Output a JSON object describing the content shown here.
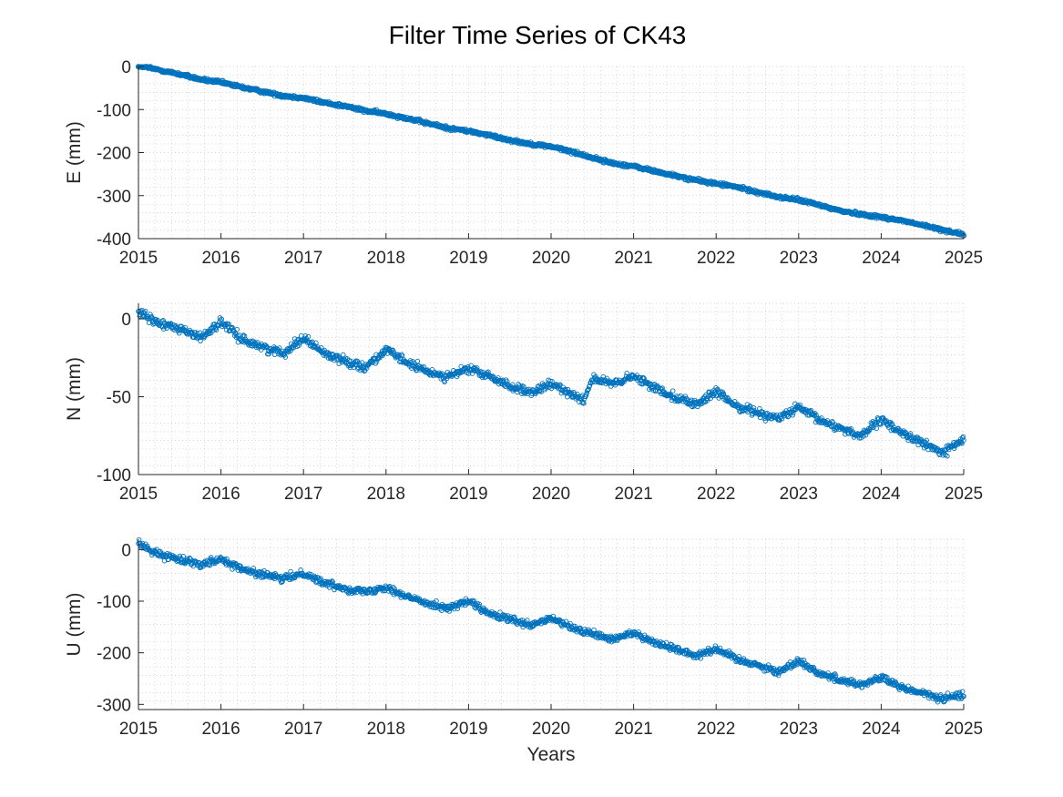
{
  "figure": {
    "background": "#ffffff"
  },
  "chart_data": {
    "title": "Filter Time Series of CK43",
    "type": "scatter",
    "marker": "open-circle",
    "marker_color": "#0072BD",
    "grid": "dotted-minor",
    "xlim": [
      2015,
      2025
    ],
    "x_ticks": [
      "2015",
      "2016",
      "2017",
      "2018",
      "2019",
      "2020",
      "2021",
      "2022",
      "2023",
      "2024",
      "2025"
    ],
    "xlabel": "Years",
    "panels": [
      {
        "ylabel": "E (mm)",
        "ylim": [
          -400,
          0
        ],
        "y_ticks": [
          "0",
          "-100",
          "-200",
          "-300",
          "-400"
        ],
        "series": [
          {
            "x": [
              2015.0,
              2015.25,
              2015.5,
              2015.75,
              2016.0,
              2016.25,
              2016.5,
              2016.75,
              2017.0,
              2017.25,
              2017.5,
              2017.75,
              2018.0,
              2018.25,
              2018.5,
              2018.75,
              2019.0,
              2019.25,
              2019.5,
              2019.75,
              2020.0,
              2020.25,
              2020.5,
              2020.75,
              2021.0,
              2021.25,
              2021.5,
              2021.75,
              2022.0,
              2022.25,
              2022.5,
              2022.75,
              2023.0,
              2023.25,
              2023.5,
              2023.75,
              2024.0,
              2024.25,
              2024.5,
              2024.75,
              2025.0
            ],
            "y": [
              2,
              -8,
              -18,
              -30,
              -37,
              -48,
              -58,
              -68,
              -73,
              -84,
              -92,
              -103,
              -110,
              -120,
              -132,
              -143,
              -150,
              -160,
              -171,
              -180,
              -186,
              -198,
              -212,
              -225,
              -232,
              -243,
              -254,
              -264,
              -272,
              -280,
              -292,
              -303,
              -310,
              -322,
              -335,
              -343,
              -350,
              -358,
              -369,
              -380,
              -390
            ]
          }
        ]
      },
      {
        "ylabel": "N (mm)",
        "ylim": [
          -100,
          10
        ],
        "y_ticks": [
          "0",
          "-50",
          "-100"
        ],
        "series": [
          {
            "x": [
              2015.0,
              2015.25,
              2015.5,
              2015.75,
              2016.0,
              2016.25,
              2016.5,
              2016.75,
              2017.0,
              2017.25,
              2017.5,
              2017.75,
              2018.0,
              2018.25,
              2018.5,
              2018.75,
              2019.0,
              2019.25,
              2019.5,
              2019.75,
              2020.0,
              2020.25,
              2020.4,
              2020.5,
              2020.75,
              2021.0,
              2021.25,
              2021.5,
              2021.75,
              2022.0,
              2022.25,
              2022.5,
              2022.75,
              2023.0,
              2023.25,
              2023.5,
              2023.75,
              2024.0,
              2024.25,
              2024.5,
              2024.75,
              2025.0
            ],
            "y": [
              4,
              -3,
              -6,
              -12,
              -2,
              -13,
              -18,
              -22,
              -12,
              -22,
              -27,
              -31,
              -20,
              -28,
              -34,
              -37,
              -32,
              -37,
              -43,
              -48,
              -42,
              -48,
              -52,
              -38,
              -42,
              -37,
              -44,
              -50,
              -55,
              -47,
              -56,
              -60,
              -64,
              -57,
              -65,
              -70,
              -75,
              -65,
              -73,
              -80,
              -86,
              -77
            ]
          }
        ]
      },
      {
        "ylabel": "U (mm)",
        "ylim": [
          -310,
          20
        ],
        "y_ticks": [
          "0",
          "-100",
          "-200",
          "-300"
        ],
        "series": [
          {
            "x": [
              2015.0,
              2015.25,
              2015.5,
              2015.75,
              2016.0,
              2016.25,
              2016.5,
              2016.75,
              2017.0,
              2017.25,
              2017.5,
              2017.75,
              2018.0,
              2018.25,
              2018.5,
              2018.75,
              2019.0,
              2019.25,
              2019.5,
              2019.75,
              2020.0,
              2020.25,
              2020.5,
              2020.75,
              2021.0,
              2021.25,
              2021.5,
              2021.75,
              2022.0,
              2022.25,
              2022.5,
              2022.75,
              2023.0,
              2023.25,
              2023.5,
              2023.75,
              2024.0,
              2024.25,
              2024.5,
              2024.75,
              2025.0
            ],
            "y": [
              12,
              -10,
              -18,
              -28,
              -18,
              -38,
              -48,
              -57,
              -45,
              -65,
              -75,
              -82,
              -72,
              -92,
              -103,
              -114,
              -100,
              -125,
              -135,
              -148,
              -133,
              -152,
              -163,
              -175,
              -160,
              -180,
              -192,
              -205,
              -192,
              -212,
              -223,
              -238,
              -215,
              -240,
              -252,
              -262,
              -248,
              -268,
              -278,
              -290,
              -280
            ]
          }
        ]
      }
    ]
  }
}
